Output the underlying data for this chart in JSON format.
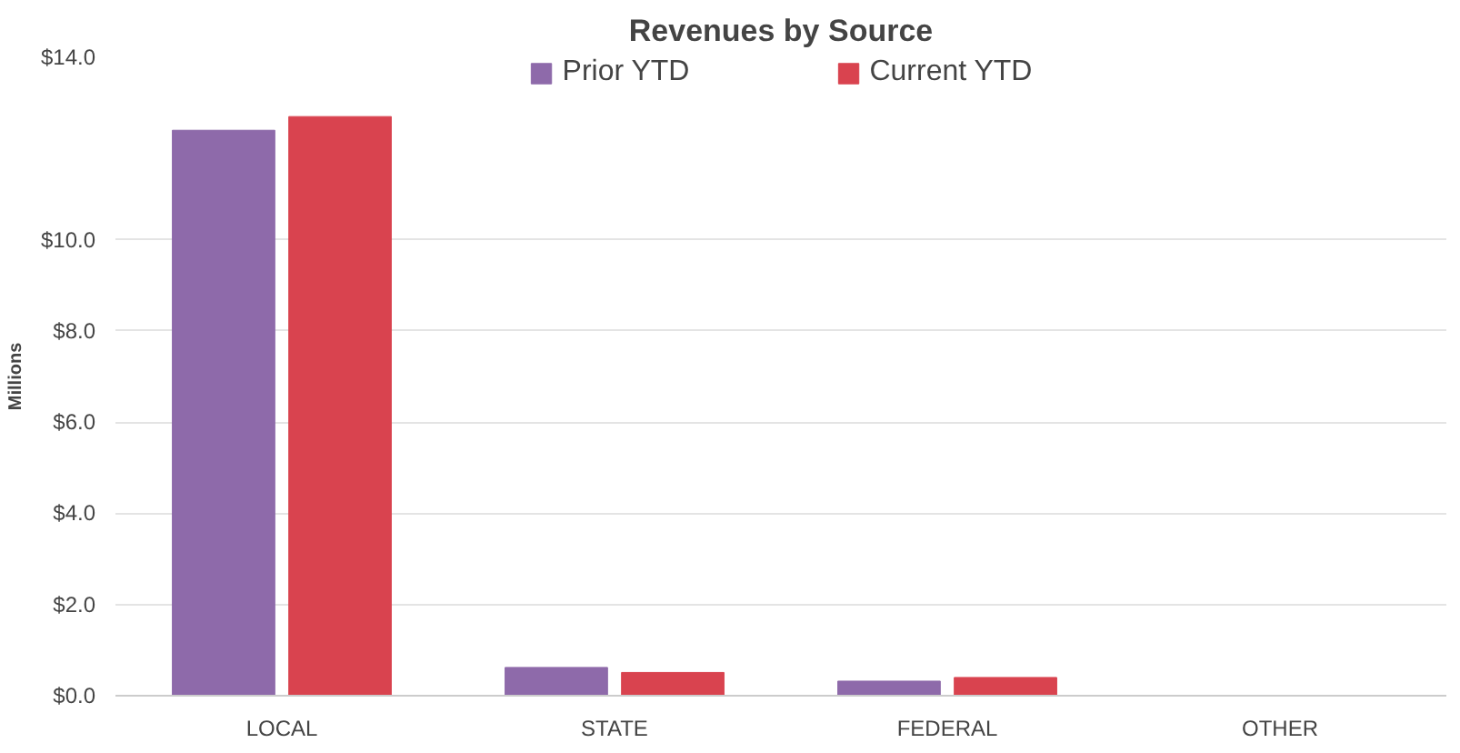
{
  "chart_data": {
    "type": "bar",
    "title": "Revenues by Source",
    "ylabel": "Millions",
    "categories": [
      "LOCAL",
      "STATE",
      "FEDERAL",
      "OTHER"
    ],
    "series": [
      {
        "name": "Prior YTD",
        "color": "#8e6aaa",
        "values": [
          12.4,
          0.62,
          0.32,
          null
        ]
      },
      {
        "name": "Current YTD",
        "color": "#d9434f",
        "values": [
          12.7,
          0.51,
          0.4,
          null
        ]
      }
    ],
    "ylim": [
      0,
      14
    ],
    "yticks": [
      {
        "value": 0,
        "label": "$0.0"
      },
      {
        "value": 2,
        "label": "$2.0"
      },
      {
        "value": 4,
        "label": "$4.0"
      },
      {
        "value": 6,
        "label": "$6.0"
      },
      {
        "value": 8,
        "label": "$8.0"
      },
      {
        "value": 10,
        "label": "$10.0"
      },
      {
        "value": 14,
        "label": "$14.0"
      }
    ],
    "grid": "y",
    "legend": "top"
  }
}
